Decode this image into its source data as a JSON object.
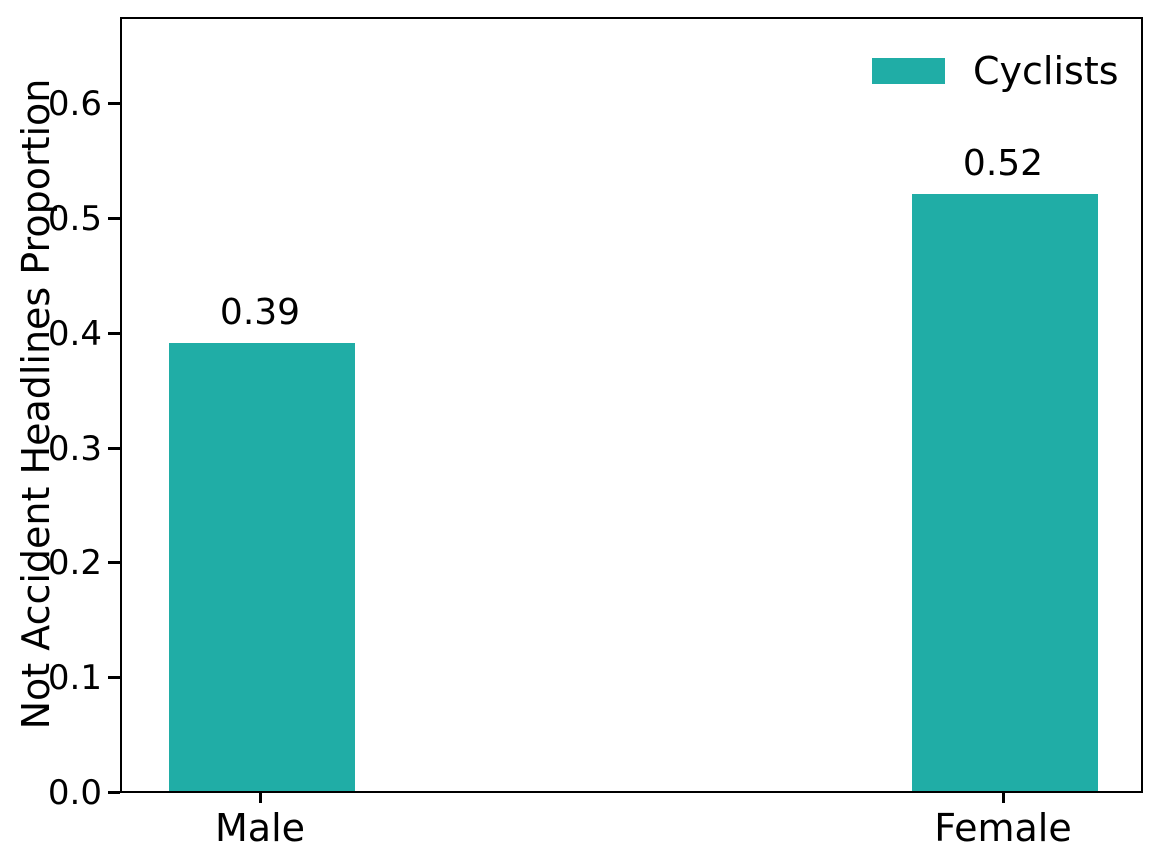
{
  "figure": {
    "background": "#ffffff",
    "axis_color": "#000000",
    "text_color": "#000000"
  },
  "chart_data": {
    "type": "bar",
    "title": "",
    "xlabel": "",
    "ylabel": "Not Accident Headlines Proportion",
    "categories": [
      "Male",
      "Female"
    ],
    "series": [
      {
        "name": "Cyclists",
        "values": [
          0.39,
          0.52
        ]
      }
    ],
    "data_labels": [
      "0.39",
      "0.52"
    ],
    "bar_color": "#20ada6",
    "ylim": [
      0,
      0.676
    ],
    "ytick_values": [
      0,
      0.1,
      0.2,
      0.3,
      0.4,
      0.5,
      0.6
    ],
    "ytick_labels": [
      "0.0",
      "0.1",
      "0.2",
      "0.3",
      "0.4",
      "0.5",
      "0.6"
    ],
    "grid": false,
    "legend": {
      "position": "upper-right",
      "frame": false,
      "entries": [
        {
          "label": "Cyclists",
          "color": "#20ada6"
        }
      ]
    }
  }
}
